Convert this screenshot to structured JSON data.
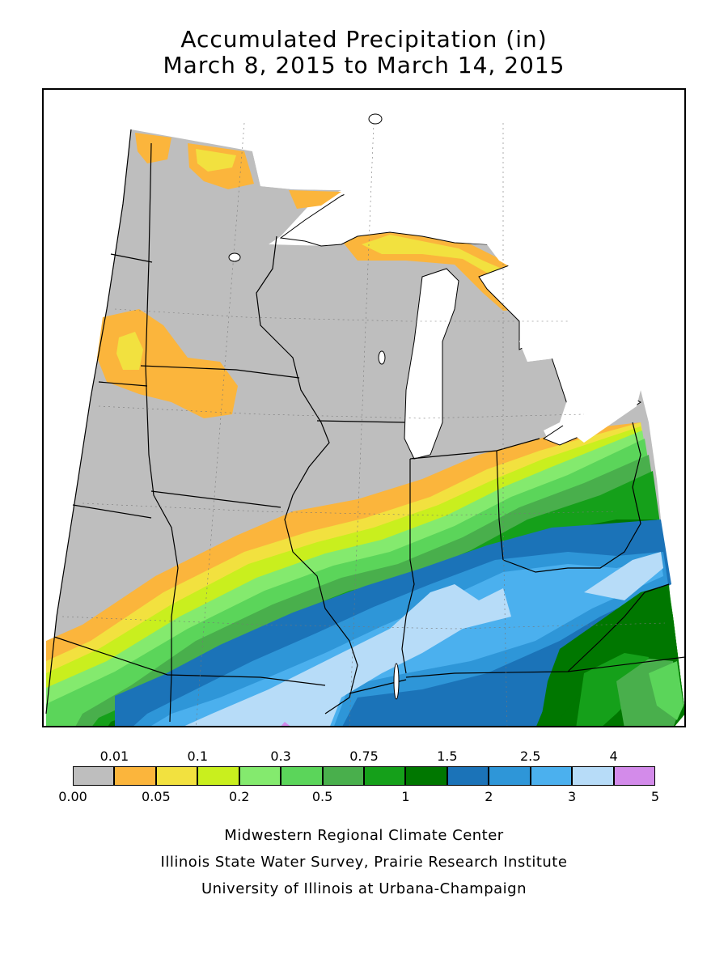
{
  "title": {
    "line1": "Accumulated Precipitation (in)",
    "line2": "March 8, 2015 to March 14, 2015"
  },
  "legend": {
    "upper_labels": [
      "0.01",
      "0.1",
      "0.3",
      "0.75",
      "1.5",
      "2.5",
      "4"
    ],
    "lower_labels": [
      "0.00",
      "0.05",
      "0.2",
      "0.5",
      "1",
      "2",
      "3",
      "5"
    ],
    "colors": [
      "#bebebe",
      "#fbb53c",
      "#f2e13f",
      "#c9ef1e",
      "#84ea6e",
      "#5bd55a",
      "#49af4c",
      "#15a01a",
      "#007700",
      "#1b73b8",
      "#2e96d8",
      "#4bb0ee",
      "#b7dcf8",
      "#d38bea"
    ]
  },
  "credits": {
    "line1": "Midwestern Regional Climate Center",
    "line2": "Illinois State Water Survey, Prairie Research Institute",
    "line3": "University of Illinois at Urbana-Champaign"
  },
  "map": {
    "land_color": "#bebebe",
    "water_color": "#ffffff",
    "boundary_color": "#000000"
  }
}
